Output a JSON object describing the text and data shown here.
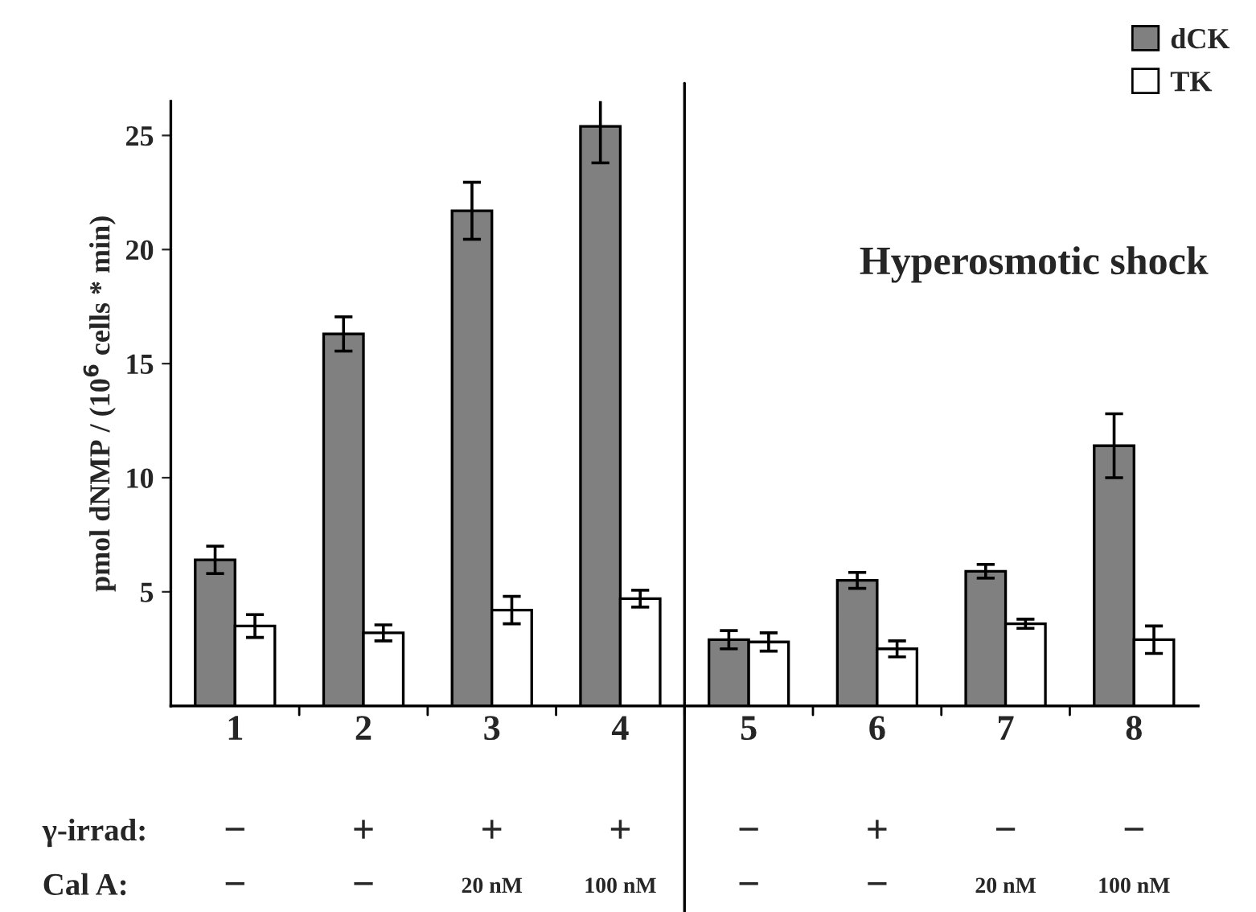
{
  "chart_data": {
    "type": "bar",
    "ylabel": "pmol dNMP / (10$^{6}$ cells * min)",
    "categories": [
      "1",
      "2",
      "3",
      "4",
      "5",
      "6",
      "7",
      "8"
    ],
    "series": [
      {
        "name": "dCK",
        "color": "#808080",
        "values": [
          6.4,
          16.3,
          21.7,
          25.4,
          2.9,
          5.5,
          5.9,
          11.4
        ],
        "errors": [
          0.6,
          0.75,
          1.25,
          1.6,
          0.4,
          0.35,
          0.3,
          1.4
        ]
      },
      {
        "name": "TK",
        "color": "#ffffff",
        "values": [
          3.5,
          3.2,
          4.2,
          4.7,
          2.8,
          2.5,
          3.6,
          2.9
        ],
        "errors": [
          0.5,
          0.35,
          0.6,
          0.37,
          0.4,
          0.35,
          0.2,
          0.6
        ]
      }
    ],
    "ylim": [
      0,
      26.5
    ],
    "yticks": [
      5,
      10,
      15,
      20,
      25
    ],
    "legend": "top right",
    "grid": false,
    "annotations": [
      "Hyperosmotic shock",
      "γ-irrad:",
      "−",
      "+",
      "+",
      "+",
      "−",
      "+",
      "−",
      "−",
      "Cal A:",
      "−",
      "−",
      "20 nM",
      "100 nM",
      "−",
      "−",
      "20 nM",
      "100 nM"
    ]
  }
}
